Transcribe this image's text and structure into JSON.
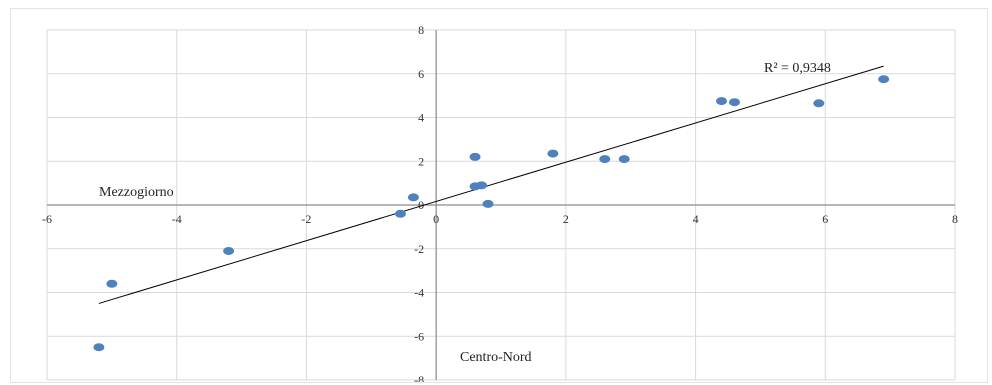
{
  "chart_data": {
    "type": "scatter",
    "title": "",
    "xlabel": "",
    "ylabel": "",
    "xlim": [
      -6,
      8
    ],
    "ylim": [
      -8,
      8
    ],
    "x_ticks": [
      -6,
      -4,
      -2,
      0,
      2,
      4,
      6,
      8
    ],
    "y_ticks": [
      -8,
      -6,
      -4,
      -2,
      0,
      2,
      4,
      6,
      8
    ],
    "x_tick_labels": [
      "-6",
      "-4",
      "-2",
      "0",
      "2",
      "4",
      "6",
      "8"
    ],
    "y_tick_labels": [
      "-8",
      "-6",
      "-4",
      "-2",
      "0",
      "2",
      "4",
      "6",
      "8"
    ],
    "grid": true,
    "points": [
      {
        "x": -5.2,
        "y": -6.5
      },
      {
        "x": -5.0,
        "y": -3.6
      },
      {
        "x": -3.2,
        "y": -2.1
      },
      {
        "x": -0.55,
        "y": -0.4
      },
      {
        "x": -0.35,
        "y": 0.35
      },
      {
        "x": 0.6,
        "y": 0.85
      },
      {
        "x": 0.7,
        "y": 0.9
      },
      {
        "x": 0.8,
        "y": 0.05
      },
      {
        "x": 0.6,
        "y": 2.2
      },
      {
        "x": 1.8,
        "y": 2.35
      },
      {
        "x": 2.6,
        "y": 2.1
      },
      {
        "x": 2.9,
        "y": 2.1
      },
      {
        "x": 4.4,
        "y": 4.75
      },
      {
        "x": 4.6,
        "y": 4.7
      },
      {
        "x": 5.9,
        "y": 4.65
      },
      {
        "x": 6.9,
        "y": 5.75
      }
    ],
    "trendline": {
      "x": [
        -5.2,
        6.9
      ],
      "y": [
        -4.5,
        6.35
      ]
    },
    "annotations": {
      "r_squared": "R² = 0,9348",
      "upper_left_label": "Mezzogiorno",
      "lower_label": "Centro-Nord"
    },
    "colors": {
      "point": "#4f81bd",
      "trendline": "#000000",
      "grid": "#d9d9d9",
      "axis": "#8c8c8c"
    }
  }
}
